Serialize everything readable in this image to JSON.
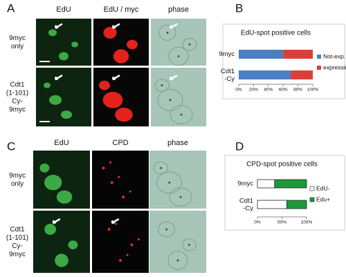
{
  "panels": [
    {
      "label": "A",
      "columns": [
        "EdU",
        "EdU / myc",
        "phase"
      ],
      "rows": [
        "9myc\nonly",
        "Cdt1\n(1-101)\nCy-\n9myc"
      ]
    },
    {
      "label": "C",
      "columns": [
        "EdU",
        "CPD",
        "phase"
      ],
      "rows": [
        "9myc\nonly",
        "Cdt1\n(1-101)\nCy-\n9myc"
      ]
    }
  ],
  "chart_labels": [
    "B",
    "D"
  ],
  "chart_data": [
    {
      "type": "stacked-bar",
      "orientation": "horizontal",
      "title": "EdU-spot positive cells",
      "categories": [
        "9myc",
        "Cdt1\n-Cy"
      ],
      "series": [
        {
          "name": "Not-exp.",
          "color": "#4a7fc1",
          "values": [
            60,
            70
          ]
        },
        {
          "name": "expressing",
          "color": "#d9403a",
          "values": [
            40,
            30
          ]
        }
      ],
      "xlim": [
        0,
        100
      ],
      "xticks": [
        {
          "value": 0,
          "label": "0%"
        },
        {
          "value": 20,
          "label": "20%"
        },
        {
          "value": 40,
          "label": "40%"
        },
        {
          "value": 60,
          "label": "60%"
        },
        {
          "value": 80,
          "label": "80%"
        },
        {
          "value": 100,
          "label": "100%"
        }
      ]
    },
    {
      "type": "stacked-bar",
      "orientation": "horizontal",
      "title": "CPD-spot positive cells",
      "categories": [
        "9myc",
        "Cdt1\n-Cy"
      ],
      "series": [
        {
          "name": "EdU-",
          "color": "#ffffff",
          "values": [
            35,
            60
          ]
        },
        {
          "name": "Edu+",
          "color": "#1a9a3a",
          "values": [
            65,
            40
          ]
        }
      ],
      "xlim": [
        0,
        100
      ],
      "xticks": [
        {
          "value": 0,
          "label": "0%"
        },
        {
          "value": 50,
          "label": "50%"
        },
        {
          "value": 100,
          "label": "100%"
        }
      ]
    }
  ]
}
